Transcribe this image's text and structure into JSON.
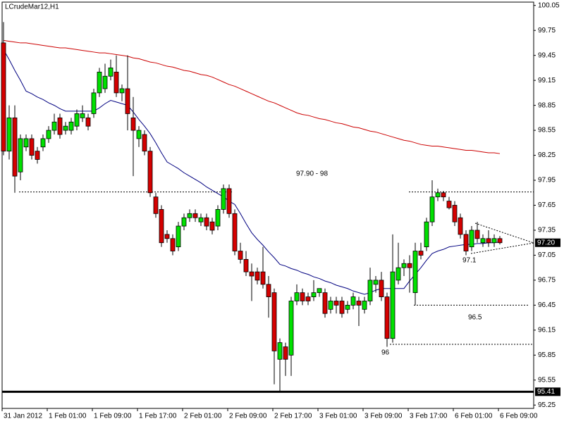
{
  "chart_data": {
    "type": "candlestick",
    "title": "LCrudeMar12,H1",
    "categories": [
      "31 Jan 2012",
      null,
      null,
      null,
      null,
      null,
      null,
      null,
      "1 Feb 01:00",
      null,
      null,
      null,
      null,
      null,
      null,
      null,
      "1 Feb 09:00",
      null,
      null,
      null,
      null,
      null,
      null,
      null,
      "1 Feb 17:00",
      null,
      null,
      null,
      null,
      null,
      null,
      null,
      "2 Feb 01:00",
      null,
      null,
      null,
      null,
      null,
      null,
      null,
      "2 Feb 09:00",
      null,
      null,
      null,
      null,
      null,
      null,
      null,
      "2 Feb 17:00",
      null,
      null,
      null,
      null,
      null,
      null,
      null,
      "3 Feb 01:00",
      null,
      null,
      null,
      null,
      null,
      null,
      null,
      "3 Feb 09:00",
      null,
      null,
      null,
      null,
      null,
      null,
      null,
      "3 Feb 17:00",
      null,
      null,
      null,
      null,
      null,
      null,
      null,
      "6 Feb 01:00",
      null,
      null,
      null,
      null,
      null,
      null,
      null,
      "6 Feb 09:00"
    ],
    "open": [
      99.6,
      98.3,
      98.7,
      98.05,
      98.35,
      98.45,
      98.3,
      98.35,
      98.45,
      98.55,
      98.7,
      98.55,
      98.55,
      98.6,
      98.7,
      98.7,
      98.75,
      99.0,
      99.05,
      99.2,
      99.25,
      99.0,
      99.05,
      98.7,
      98.45,
      98.5,
      98.3,
      97.75,
      97.6,
      97.3,
      97.25,
      97.15,
      97.4,
      97.5,
      97.55,
      97.45,
      97.5,
      97.45,
      97.4,
      97.6,
      97.85,
      97.55,
      97.1,
      97.0,
      96.85,
      96.85,
      96.85,
      96.7,
      96.6,
      95.8,
      95.95,
      95.85,
      96.5,
      96.6,
      96.55,
      96.55,
      96.6,
      96.6,
      96.4,
      96.5,
      96.5,
      96.4,
      96.45,
      96.5,
      96.4,
      96.5,
      96.7,
      96.75,
      96.55,
      96.05,
      96.75,
      96.9,
      96.95,
      96.6,
      97.1,
      97.15,
      97.45,
      97.75,
      97.8,
      97.7,
      97.65,
      97.5,
      97.3,
      97.15,
      97.35,
      97.2,
      97.25,
      97.2,
      97.25
    ],
    "high": [
      99.85,
      98.85,
      98.85,
      98.5,
      98.5,
      98.5,
      98.35,
      98.5,
      98.6,
      98.75,
      98.75,
      98.65,
      98.7,
      98.8,
      98.85,
      98.75,
      99.05,
      99.3,
      99.35,
      99.4,
      99.45,
      99.1,
      99.45,
      98.95,
      98.6,
      98.55,
      98.35,
      97.8,
      97.65,
      97.35,
      97.3,
      97.45,
      97.55,
      97.6,
      97.6,
      97.55,
      97.55,
      97.5,
      97.65,
      97.9,
      97.9,
      97.6,
      97.2,
      97.1,
      96.95,
      96.9,
      97.15,
      96.8,
      96.65,
      96.05,
      96.0,
      96.55,
      96.7,
      96.65,
      96.6,
      96.75,
      96.65,
      96.65,
      96.55,
      96.55,
      96.55,
      96.5,
      96.6,
      96.55,
      96.55,
      96.9,
      96.8,
      96.85,
      96.6,
      97.3,
      97.2,
      97.0,
      97.05,
      97.2,
      97.2,
      97.5,
      97.95,
      97.85,
      97.82,
      97.75,
      97.7,
      97.55,
      97.35,
      97.4,
      97.45,
      97.3,
      97.35,
      97.3,
      97.28
    ],
    "low": [
      98.25,
      98.2,
      97.8,
      97.95,
      98.3,
      98.2,
      98.15,
      98.3,
      98.4,
      98.5,
      98.45,
      98.5,
      98.5,
      98.55,
      98.65,
      98.55,
      98.7,
      98.95,
      99.0,
      99.15,
      98.95,
      98.9,
      98.55,
      98.0,
      98.35,
      98.25,
      97.75,
      97.5,
      97.15,
      97.2,
      97.05,
      97.1,
      97.35,
      97.45,
      97.45,
      97.4,
      97.35,
      97.3,
      97.35,
      97.55,
      97.5,
      97.05,
      96.95,
      96.8,
      96.5,
      96.7,
      96.65,
      96.3,
      95.5,
      95.4,
      95.6,
      95.6,
      96.45,
      96.45,
      96.45,
      96.5,
      96.55,
      96.3,
      96.35,
      96.35,
      96.3,
      96.35,
      96.4,
      96.2,
      96.35,
      96.45,
      96.6,
      96.5,
      95.95,
      96.0,
      96.7,
      96.8,
      96.6,
      96.45,
      97.0,
      97.1,
      97.4,
      97.7,
      97.7,
      97.6,
      97.4,
      97.25,
      97.05,
      97.1,
      97.2,
      97.15,
      97.15,
      97.15,
      97.18
    ],
    "close": [
      98.3,
      98.7,
      98.0,
      98.45,
      98.45,
      98.25,
      98.2,
      98.45,
      98.55,
      98.65,
      98.5,
      98.6,
      98.65,
      98.75,
      98.75,
      98.6,
      99.0,
      99.25,
      99.2,
      99.3,
      99.0,
      99.05,
      98.75,
      98.55,
      98.55,
      98.3,
      97.8,
      97.55,
      97.2,
      97.25,
      97.1,
      97.4,
      97.5,
      97.55,
      97.5,
      97.5,
      97.4,
      97.35,
      97.6,
      97.85,
      97.55,
      97.1,
      97.0,
      96.85,
      96.8,
      96.75,
      96.7,
      96.55,
      95.9,
      96.0,
      95.8,
      96.5,
      96.6,
      96.5,
      96.5,
      96.6,
      96.65,
      96.35,
      96.5,
      96.45,
      96.35,
      96.45,
      96.55,
      96.45,
      96.5,
      96.75,
      96.75,
      96.55,
      96.05,
      96.85,
      96.9,
      96.95,
      96.9,
      97.1,
      97.05,
      97.45,
      97.75,
      97.8,
      97.75,
      97.62,
      97.45,
      97.3,
      97.1,
      97.35,
      97.25,
      97.25,
      97.2,
      97.25,
      97.2
    ],
    "series": [
      {
        "color": "#cc0000",
        "values": [
          99.63,
          99.62,
          99.61,
          99.6,
          99.6,
          99.59,
          99.58,
          99.57,
          99.56,
          99.55,
          99.54,
          99.54,
          99.53,
          99.52,
          99.51,
          99.5,
          99.49,
          99.48,
          99.48,
          99.47,
          99.46,
          99.45,
          99.44,
          99.42,
          99.41,
          99.39,
          99.37,
          99.36,
          99.34,
          99.32,
          99.31,
          99.29,
          99.27,
          99.26,
          99.24,
          99.22,
          99.21,
          99.19,
          99.16,
          99.13,
          99.1,
          99.08,
          99.05,
          99.02,
          98.99,
          98.96,
          98.93,
          98.9,
          98.88,
          98.85,
          98.82,
          98.79,
          98.76,
          98.74,
          98.73,
          98.71,
          98.69,
          98.68,
          98.66,
          98.64,
          98.63,
          98.61,
          98.59,
          98.58,
          98.56,
          98.54,
          98.53,
          98.51,
          98.49,
          98.47,
          98.45,
          98.43,
          98.42,
          98.4,
          98.38,
          98.37,
          98.36,
          98.36,
          98.35,
          98.34,
          98.33,
          98.32,
          98.31,
          98.31,
          98.3,
          98.29,
          98.28,
          98.28,
          98.27
        ]
      },
      {
        "color": "#000080",
        "values": [
          99.52,
          99.4,
          99.27,
          99.15,
          99.02,
          98.99,
          98.95,
          98.92,
          98.88,
          98.85,
          98.81,
          98.78,
          98.78,
          98.78,
          98.78,
          98.78,
          98.78,
          98.82,
          98.87,
          98.91,
          98.89,
          98.87,
          98.85,
          98.77,
          98.68,
          98.6,
          98.51,
          98.4,
          98.28,
          98.17,
          98.13,
          98.09,
          98.04,
          98.0,
          97.96,
          97.92,
          97.87,
          97.83,
          97.79,
          97.75,
          97.7,
          97.66,
          97.55,
          97.43,
          97.32,
          97.24,
          97.17,
          97.09,
          97.02,
          96.94,
          96.92,
          96.89,
          96.87,
          96.84,
          96.82,
          96.79,
          96.77,
          96.74,
          96.72,
          96.69,
          96.67,
          96.65,
          96.62,
          96.6,
          96.58,
          96.6,
          96.63,
          96.65,
          96.65,
          96.65,
          96.65,
          96.65,
          96.74,
          96.82,
          96.9,
          96.99,
          97.07,
          97.1,
          97.12,
          97.15,
          97.16,
          97.17,
          97.18,
          97.18,
          97.19,
          97.19,
          97.2,
          97.2,
          97.21
        ]
      }
    ],
    "bull_color": "#00e000",
    "bear_color": "#d40000",
    "ylim": [
      95.21,
      100.09
    ],
    "yticks": [
      {
        "value": 100.05,
        "label": "100.05"
      },
      99.75,
      99.45,
      99.15,
      98.85,
      98.55,
      98.25,
      97.95,
      97.65,
      97.35,
      97.05,
      96.75,
      96.45,
      96.15,
      95.85,
      95.55,
      95.25
    ],
    "levels": [
      97.81,
      96.45,
      95.98
    ],
    "annotations": [
      "97.90 - 98",
      "96.5",
      "96",
      "97.1"
    ],
    "support": 95.41,
    "last_price": {
      "value": 97.2,
      "label": "97.20"
    }
  }
}
